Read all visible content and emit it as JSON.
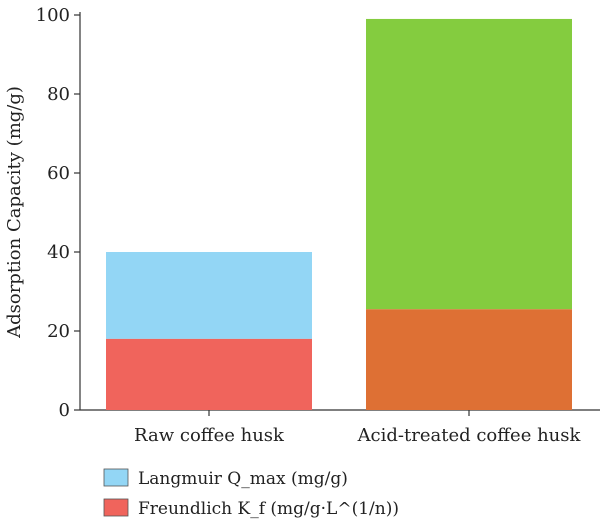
{
  "chart_data": {
    "type": "bar",
    "categories": [
      "Raw coffee husk",
      "Acid-treated coffee husk"
    ],
    "series": [
      {
        "name": "Langmuir Q_max (mg/g)",
        "values": [
          40,
          99
        ],
        "colors": [
          "#93d6f5",
          "#84cc3f"
        ]
      },
      {
        "name": "Freundlich K_f (mg/g·L^(1/n))",
        "values": [
          18,
          25.5
        ],
        "colors": [
          "#f0645c",
          "#de7034"
        ]
      }
    ],
    "legend_colors": [
      "#93d6f5",
      "#f0645c"
    ],
    "ylabel": "Adsorption Capacity (mg/g)",
    "xlabel": "",
    "ylim": [
      0,
      100
    ],
    "yticks": [
      0,
      20,
      40,
      60,
      80,
      100
    ],
    "legend_position": "bottom-left",
    "grid": false
  }
}
